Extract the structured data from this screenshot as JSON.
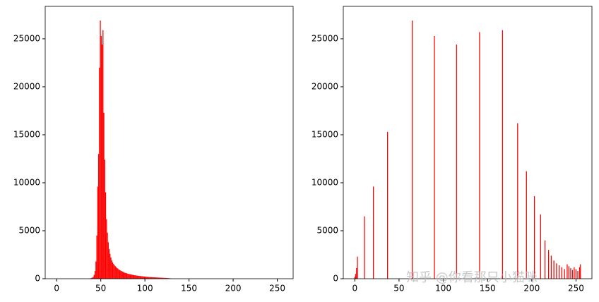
{
  "chart_data": [
    {
      "type": "histogram",
      "color": "#ff0000",
      "bins": [
        38,
        39,
        40,
        41,
        42,
        43,
        44,
        45,
        46,
        47,
        48,
        49,
        50,
        51,
        52,
        53,
        54,
        55,
        56,
        57,
        58,
        59,
        60,
        61,
        62,
        63,
        64,
        65,
        66,
        67,
        68,
        69,
        70,
        71,
        72,
        73,
        74,
        75,
        76,
        77,
        78,
        79,
        80,
        81,
        82,
        83,
        84,
        85,
        86,
        87,
        88,
        89,
        90,
        91,
        92,
        93,
        94,
        95,
        96,
        97,
        98,
        99,
        100,
        101,
        102,
        103,
        104,
        105,
        106,
        107,
        108,
        109,
        110,
        111,
        112,
        113,
        114,
        115,
        116,
        117,
        118,
        119,
        120,
        121,
        122,
        123,
        124,
        125,
        126,
        127,
        128,
        129,
        130
      ],
      "values": [
        50,
        80,
        120,
        200,
        400,
        800,
        1800,
        4500,
        9600,
        13000,
        22000,
        26900,
        25300,
        24400,
        25900,
        17300,
        12400,
        9000,
        6200,
        4800,
        3800,
        3100,
        2600,
        2200,
        1900,
        1700,
        1550,
        1400,
        1300,
        1200,
        1100,
        1050,
        950,
        900,
        850,
        800,
        750,
        700,
        650,
        620,
        590,
        560,
        530,
        500,
        480,
        460,
        440,
        420,
        400,
        380,
        360,
        345,
        330,
        315,
        300,
        290,
        280,
        270,
        260,
        250,
        240,
        230,
        220,
        210,
        200,
        190,
        180,
        170,
        165,
        160,
        155,
        150,
        145,
        140,
        135,
        130,
        125,
        120,
        115,
        110,
        105,
        100,
        95,
        90,
        85,
        80,
        75,
        70,
        60,
        50,
        40,
        30
      ],
      "xlim": [
        -13,
        268
      ],
      "xticks": [
        0,
        50,
        100,
        150,
        200,
        250
      ],
      "ylim": [
        0,
        28380
      ],
      "yticks": [
        0,
        5000,
        10000,
        15000,
        20000,
        25000
      ]
    },
    {
      "type": "spikes",
      "color": "#ff0000",
      "x": [
        0,
        1,
        2,
        3,
        11,
        21,
        37,
        65,
        90,
        115,
        141,
        167,
        184,
        194,
        203,
        210,
        215,
        219,
        222,
        225,
        228,
        231,
        234,
        237,
        240,
        242,
        244,
        246,
        248,
        250,
        252,
        254,
        255
      ],
      "values": [
        200,
        500,
        1100,
        2300,
        6500,
        9600,
        15300,
        26900,
        25300,
        24400,
        25700,
        25900,
        16200,
        11200,
        8600,
        6700,
        4000,
        3000,
        2400,
        1900,
        1600,
        1400,
        1200,
        1000,
        1500,
        1300,
        1100,
        900,
        1200,
        1000,
        800,
        1200,
        1500
      ],
      "xlim": [
        -13,
        268
      ],
      "xticks": [
        0,
        50,
        100,
        150,
        200,
        250
      ],
      "ylim": [
        0,
        28380
      ],
      "yticks": [
        0,
        5000,
        10000,
        15000,
        20000,
        25000
      ],
      "annotation": "知乎 @你看那只小猫咪"
    }
  ]
}
